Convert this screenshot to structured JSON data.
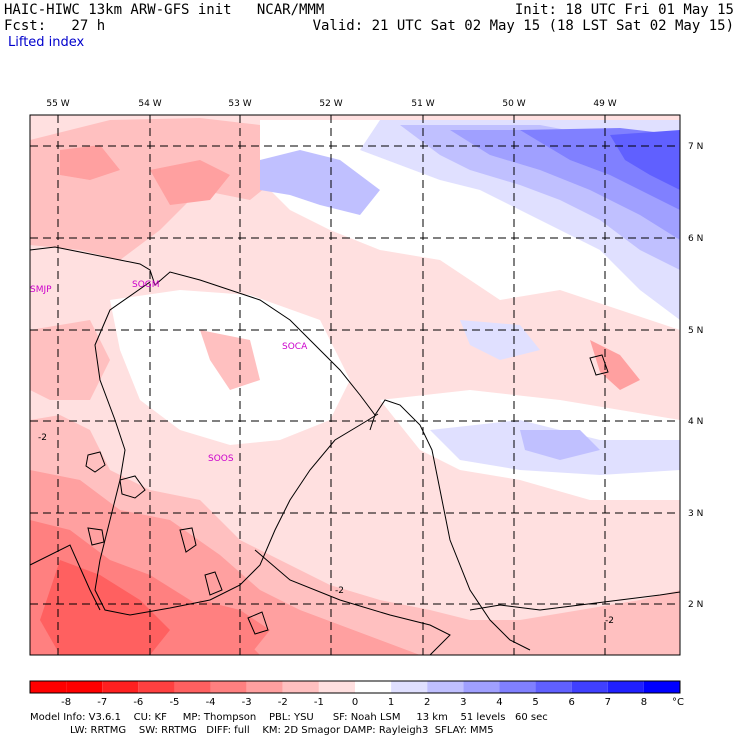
{
  "header": {
    "line1_left": "HAIC-HIWC 13km ARW-GFS init   NCAR/MMM",
    "line1_right": "Init: 18 UTC Fri 01 May 15",
    "line2_left": "Fcst:   27 h",
    "line2_right": "Valid: 21 UTC Sat 02 May 15 (18 LST Sat 02 May 15)",
    "field": "Lifted index"
  },
  "map": {
    "lon_labels": [
      "55 W",
      "54 W",
      "53 W",
      "52 W",
      "51 W",
      "50 W",
      "49 W"
    ],
    "lat_labels": [
      "7 N",
      "6 N",
      "5 N",
      "4 N",
      "3 N",
      "2 N"
    ],
    "stations": [
      "SMJP",
      "SOGM",
      "SOCA",
      "SOOS"
    ],
    "contour_labels": [
      "-2",
      "-2",
      "-2"
    ]
  },
  "colorbar": {
    "levels": [
      "-8",
      "-7",
      "-6",
      "-5",
      "-4",
      "-3",
      "-2",
      "-1",
      "0",
      "1",
      "2",
      "3",
      "4",
      "5",
      "6",
      "7",
      "8"
    ],
    "unit": "°C",
    "colors": [
      "#ff0000",
      "#ff2020",
      "#ff4040",
      "#ff6060",
      "#ff8080",
      "#ffa0a0",
      "#ffc0c0",
      "#ffe0e0",
      "#ffffff",
      "#e0e0ff",
      "#c0c0ff",
      "#a0a0ff",
      "#8080ff",
      "#6060ff",
      "#4040ff",
      "#2020ff",
      "#0000ff"
    ]
  },
  "footer": {
    "line1": "Model Info: V3.6.1    CU: KF     MP: Thompson    PBL: YSU      SF: Noah LSM     13 km    51 levels   60 sec",
    "line2": "LW: RRTMG    SW: RRTMG   DIFF: full    KM: 2D Smagor DAMP: Rayleigh3  SFLAY: MM5"
  }
}
